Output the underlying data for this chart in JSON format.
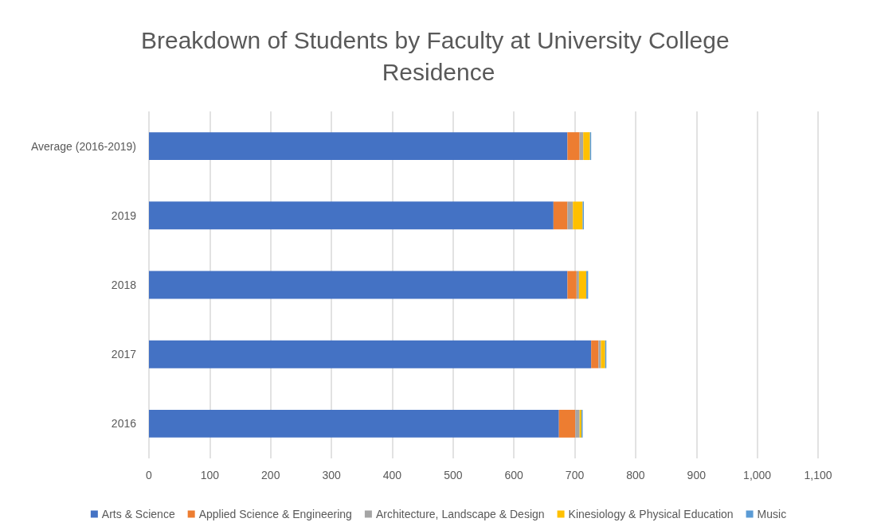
{
  "chart_data": {
    "type": "bar",
    "orientation": "horizontal",
    "stacked": true,
    "title": "Breakdown of Students by Faculty at University College Residence",
    "categories": [
      "Average (2016-2019)",
      "2019",
      "2018",
      "2017",
      "2016"
    ],
    "series": [
      {
        "name": "Arts & Science",
        "color": "#4472c4",
        "values": [
          688,
          665,
          688,
          727,
          674
        ]
      },
      {
        "name": "Applied Science & Engineering",
        "color": "#ed7d31",
        "values": [
          20,
          23,
          15,
          12,
          27
        ]
      },
      {
        "name": "Architecture, Landscape & Design",
        "color": "#a5a5a5",
        "values": [
          6,
          9,
          4,
          4,
          7
        ]
      },
      {
        "name": "Kinesiology & Physical Education",
        "color": "#ffc000",
        "values": [
          11,
          16,
          12,
          7,
          3
        ]
      },
      {
        "name": "Music",
        "color": "#5b9bd5",
        "values": [
          2,
          2,
          3,
          2,
          2
        ]
      }
    ],
    "xlim": [
      0,
      1100
    ],
    "xticks": [
      0,
      100,
      200,
      300,
      400,
      500,
      600,
      700,
      800,
      900,
      {
        "value": 1000,
        "label": "1,000"
      },
      {
        "value": 1100,
        "label": "1,100"
      }
    ],
    "grid": "x",
    "legend": "bottom"
  }
}
